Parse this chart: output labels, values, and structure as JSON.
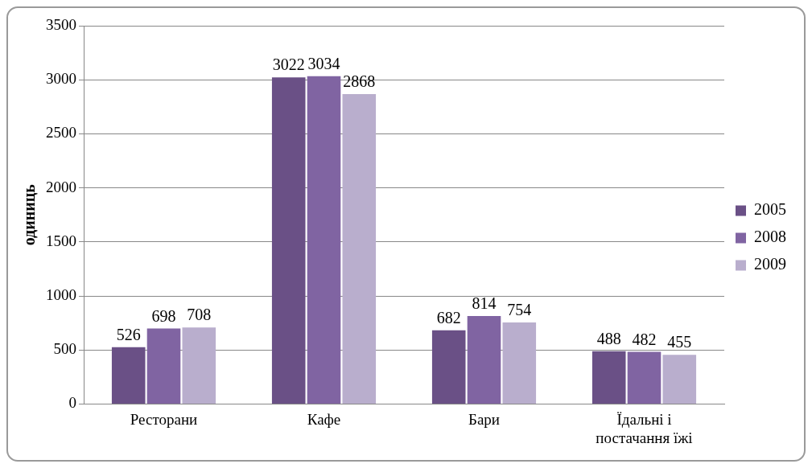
{
  "chart_data": {
    "type": "bar",
    "ylabel": "одиниць",
    "categories": [
      "Ресторани",
      "Кафе",
      "Бари",
      "Їдальні і постачання їжі"
    ],
    "series": [
      {
        "name": "2005",
        "color": "#6a5086",
        "values": [
          526,
          3022,
          682,
          488
        ]
      },
      {
        "name": "2008",
        "color": "#8064a2",
        "values": [
          698,
          3034,
          814,
          482
        ]
      },
      {
        "name": "2009",
        "color": "#b9aecd",
        "values": [
          708,
          2868,
          754,
          455
        ]
      }
    ],
    "ylim": [
      0,
      3500
    ],
    "yticks": [
      0,
      500,
      1000,
      1500,
      2000,
      2500,
      3000,
      3500
    ],
    "grid": "y",
    "legend": "right",
    "data_labels": true
  }
}
